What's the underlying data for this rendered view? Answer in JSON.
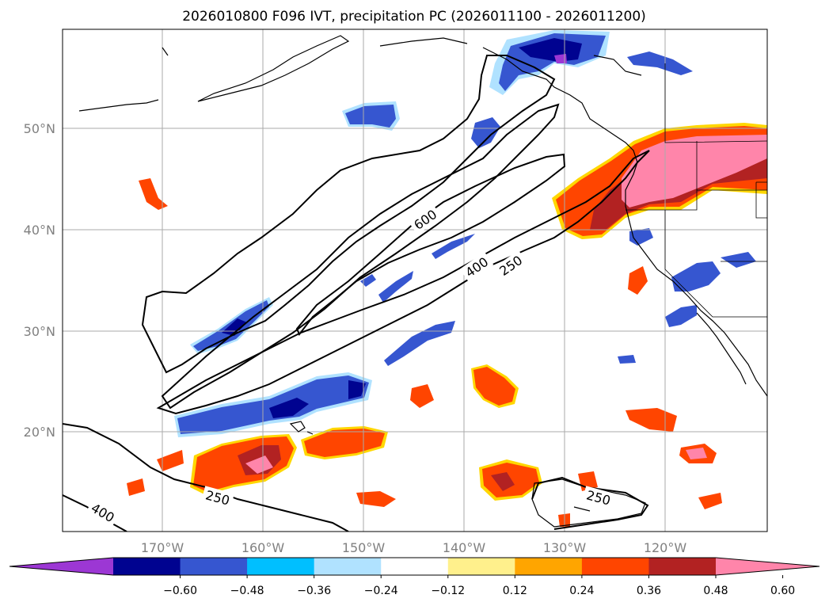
{
  "title": "2026010800 F096 IVT, precipitation PC (2026011100 - 2026011200)",
  "map": {
    "lon_labels": [
      "170°W",
      "160°W",
      "150°W",
      "140°W",
      "130°W",
      "120°W"
    ],
    "lat_labels": [
      "50°N",
      "40°N",
      "30°N",
      "20°N"
    ],
    "ivt_contour_labels": [
      {
        "text": "600",
        "level": 600
      },
      {
        "text": "400",
        "level": 400
      },
      {
        "text": "250",
        "level": 250
      },
      {
        "text": "250",
        "level": 250
      },
      {
        "text": "400",
        "level": 400
      },
      {
        "text": "250",
        "level": 250
      }
    ]
  },
  "colorbar": {
    "bins": [
      "#9c37d4",
      "#000390",
      "#3656d0",
      "#00bfff",
      "#b0e2ff",
      "#ffffff",
      "#fff08c",
      "#ffa500",
      "#ff4500",
      "#b22222",
      "#ff85aa"
    ],
    "tick_labels": [
      "−0.60",
      "−0.48",
      "−0.36",
      "−0.24",
      "−0.12",
      "0.12",
      "0.24",
      "0.36",
      "0.48",
      "0.60"
    ]
  },
  "colors": {
    "neg_outer": "#b0e2ff",
    "neg_mid": "#3656d0",
    "neg_core": "#000390",
    "neg_peak": "#9c37d4",
    "pos_outer": "#ffd700",
    "pos_mid": "#ff4500",
    "pos_core": "#b22222",
    "pos_peak": "#ff85aa"
  }
}
